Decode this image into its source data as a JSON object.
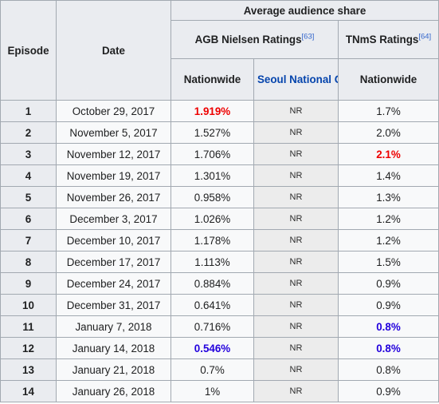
{
  "header": {
    "episode": "Episode",
    "date": "Date",
    "average_audience_share": "Average audience share",
    "agb_title": "AGB Nielsen Ratings",
    "agb_ref": "[63]",
    "tnms_title": "TNmS Ratings",
    "tnms_ref": "[64]",
    "nationwide": "Nationwide",
    "seoul": "Seoul National Capital Area",
    "tnms_nationwide": "Nationwide"
  },
  "rows": [
    {
      "episode": "1",
      "date": "October 29, 2017",
      "agb": "1.919%",
      "seoul": "NR",
      "tnms": "1.7%"
    },
    {
      "episode": "2",
      "date": "November 5, 2017",
      "agb": "1.527%",
      "seoul": "NR",
      "tnms": "2.0%"
    },
    {
      "episode": "3",
      "date": "November 12, 2017",
      "agb": "1.706%",
      "seoul": "NR",
      "tnms": "2.1%"
    },
    {
      "episode": "4",
      "date": "November 19, 2017",
      "agb": "1.301%",
      "seoul": "NR",
      "tnms": "1.4%"
    },
    {
      "episode": "5",
      "date": "November 26, 2017",
      "agb": "0.958%",
      "seoul": "NR",
      "tnms": "1.3%"
    },
    {
      "episode": "6",
      "date": "December 3, 2017",
      "agb": "1.026%",
      "seoul": "NR",
      "tnms": "1.2%"
    },
    {
      "episode": "7",
      "date": "December 10, 2017",
      "agb": "1.178%",
      "seoul": "NR",
      "tnms": "1.2%"
    },
    {
      "episode": "8",
      "date": "December 17, 2017",
      "agb": "1.113%",
      "seoul": "NR",
      "tnms": "1.5%"
    },
    {
      "episode": "9",
      "date": "December 24, 2017",
      "agb": "0.884%",
      "seoul": "NR",
      "tnms": "0.9%"
    },
    {
      "episode": "10",
      "date": "December 31, 2017",
      "agb": "0.641%",
      "seoul": "NR",
      "tnms": "0.9%"
    },
    {
      "episode": "11",
      "date": "January 7, 2018",
      "agb": "0.716%",
      "seoul": "NR",
      "tnms": "0.8%"
    },
    {
      "episode": "12",
      "date": "January 14, 2018",
      "agb": "0.546%",
      "seoul": "NR",
      "tnms": "0.8%"
    },
    {
      "episode": "13",
      "date": "January 21, 2018",
      "agb": "0.7%",
      "seoul": "NR",
      "tnms": "0.8%"
    },
    {
      "episode": "14",
      "date": "January 26, 2018",
      "agb": "1%",
      "seoul": "NR",
      "tnms": "0.9%"
    }
  ],
  "colors": {
    "highest": "#ee0000",
    "lowest": "#2200dd",
    "header_bg": "#eaecf0",
    "cell_bg": "#f8f9fa",
    "nr_bg": "#ececec",
    "link": "#0645ad"
  }
}
